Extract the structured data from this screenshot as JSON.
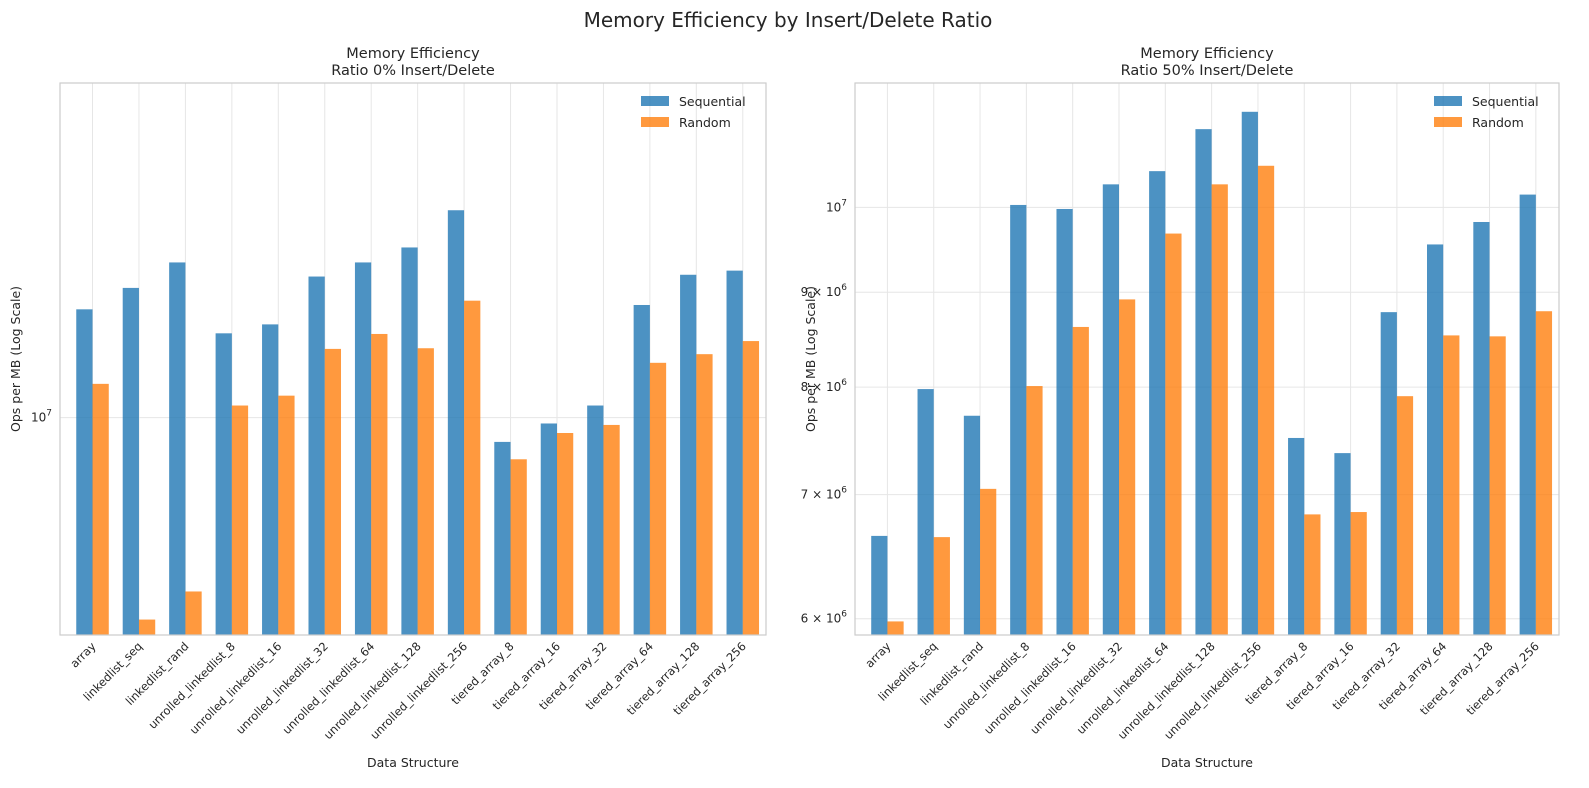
{
  "figure": {
    "suptitle": "Memory Efficiency by Insert/Delete Ratio"
  },
  "colors": {
    "sequential": "#1f77b4",
    "random": "#ff7f0e",
    "grid": "#e6e6e6",
    "frame": "#cccccc"
  },
  "chart_data": [
    {
      "type": "bar",
      "title": "Memory Efficiency\nRatio 0% Insert/Delete",
      "xlabel": "Data Structure",
      "ylabel": "Ops per MB (Log Scale)",
      "yscale": "log",
      "ylim": [
        7400000,
        15900000
      ],
      "yticks": [
        10000000
      ],
      "ytick_labels": [
        "10^7"
      ],
      "grid": true,
      "legend_position": "top-right",
      "categories": [
        "array",
        "linkedlist_seq",
        "linkedlist_rand",
        "unrolled_linkedlist_8",
        "unrolled_linkedlist_16",
        "unrolled_linkedlist_32",
        "unrolled_linkedlist_64",
        "unrolled_linkedlist_128",
        "unrolled_linkedlist_256",
        "tiered_array_8",
        "tiered_array_16",
        "tiered_array_32",
        "tiered_array_64",
        "tiered_array_128",
        "tiered_array_256"
      ],
      "series": [
        {
          "name": "Sequential",
          "values": [
            11620000,
            11970000,
            12400000,
            11240000,
            11380000,
            12160000,
            12400000,
            12660000,
            13330000,
            9670000,
            9920000,
            10170000,
            11690000,
            12190000,
            12260000
          ]
        },
        {
          "name": "Random",
          "values": [
            10480000,
            7560000,
            7860000,
            10170000,
            10310000,
            11000000,
            11230000,
            11010000,
            11760000,
            9440000,
            9790000,
            9900000,
            10790000,
            10920000,
            11120000
          ]
        }
      ]
    },
    {
      "type": "bar",
      "title": "Memory Efficiency\nRatio 50% Insert/Delete",
      "xlabel": "Data Structure",
      "ylabel": "Ops per MB (Log Scale)",
      "yscale": "log",
      "ylim": [
        5880000,
        11670000
      ],
      "yticks": [
        6000000,
        7000000,
        8000000,
        9000000,
        10000000
      ],
      "ytick_labels": [
        "6 × 10^6",
        "7 × 10^6",
        "8 × 10^6",
        "9 × 10^6",
        "10^7"
      ],
      "grid": true,
      "legend_position": "top-right",
      "categories": [
        "array",
        "linkedlist_seq",
        "linkedlist_rand",
        "unrolled_linkedlist_8",
        "unrolled_linkedlist_16",
        "unrolled_linkedlist_32",
        "unrolled_linkedlist_64",
        "unrolled_linkedlist_128",
        "unrolled_linkedlist_256",
        "tiered_array_8",
        "tiered_array_16",
        "tiered_array_32",
        "tiered_array_64",
        "tiered_array_128",
        "tiered_array_256"
      ],
      "series": [
        {
          "name": "Sequential",
          "values": [
            6650000,
            7980000,
            7720000,
            10030000,
            9980000,
            10290000,
            10460000,
            11020000,
            11260000,
            7510000,
            7370000,
            8780000,
            9550000,
            9820000,
            10160000
          ]
        },
        {
          "name": "Random",
          "values": [
            5980000,
            6640000,
            7050000,
            8010000,
            8620000,
            8920000,
            9680000,
            10290000,
            10530000,
            6830000,
            6850000,
            7910000,
            8530000,
            8520000,
            8790000
          ]
        }
      ]
    }
  ]
}
